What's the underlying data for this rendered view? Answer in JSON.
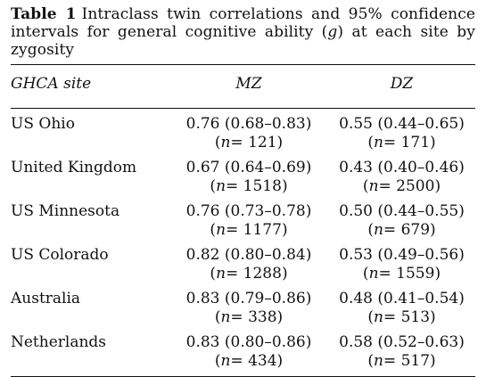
{
  "caption": {
    "label": "Table 1",
    "text_before": "Intraclass twin correlations and 95% confidence intervals for general cognitive ability (",
    "italic": "g",
    "text_after": ") at each site by zygosity"
  },
  "table": {
    "headers": [
      "GHCA site",
      "MZ",
      "DZ"
    ],
    "n_var": "n",
    "rows": [
      {
        "site": "US Ohio",
        "mz": "0.76 (0.68–0.83)",
        "mz_n": "= 121",
        "dz": "0.55 (0.44–0.65)",
        "dz_n": "= 171"
      },
      {
        "site": "United Kingdom",
        "mz": "0.67 (0.64–0.69)",
        "mz_n": "= 1518",
        "dz": "0.43 (0.40–0.46)",
        "dz_n": "= 2500"
      },
      {
        "site": "US Minnesota",
        "mz": "0.76 (0.73–0.78)",
        "mz_n": "= 1177",
        "dz": "0.50 (0.44–0.55)",
        "dz_n": "= 679"
      },
      {
        "site": "US Colorado",
        "mz": "0.82 (0.80–0.84)",
        "mz_n": "= 1288",
        "dz": "0.53 (0.49–0.56)",
        "dz_n": "= 1559"
      },
      {
        "site": "Australia",
        "mz": "0.83 (0.79–0.86)",
        "mz_n": "= 338",
        "dz": "0.48 (0.41–0.54)",
        "dz_n": "= 513"
      },
      {
        "site": "Netherlands",
        "mz": "0.83 (0.80–0.86)",
        "mz_n": "= 434",
        "dz": "0.58 (0.52–0.63)",
        "dz_n": "= 517"
      }
    ]
  }
}
